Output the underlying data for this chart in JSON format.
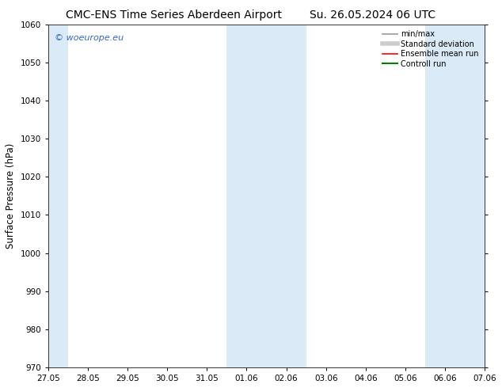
{
  "title_left": "CMC-ENS Time Series Aberdeen Airport",
  "title_right": "Su. 26.05.2024 06 UTC",
  "ylabel": "Surface Pressure (hPa)",
  "ylim": [
    970,
    1060
  ],
  "yticks": [
    970,
    980,
    990,
    1000,
    1010,
    1020,
    1030,
    1040,
    1050,
    1060
  ],
  "xtick_labels": [
    "27.05",
    "28.05",
    "29.05",
    "30.05",
    "31.05",
    "01.06",
    "02.06",
    "03.06",
    "04.06",
    "05.06",
    "06.06",
    "07.06"
  ],
  "shaded_columns": [
    0,
    5,
    6,
    10,
    11
  ],
  "shaded_color": "#daeaf7",
  "background_color": "#ffffff",
  "watermark": "© woeurope.eu",
  "watermark_color": "#3366cc",
  "legend_entries": [
    {
      "label": "min/max",
      "color": "#999999",
      "lw": 1.2
    },
    {
      "label": "Standard deviation",
      "color": "#cccccc",
      "lw": 4
    },
    {
      "label": "Ensemble mean run",
      "color": "#ff0000",
      "lw": 1.2
    },
    {
      "label": "Controll run",
      "color": "#008000",
      "lw": 1.5
    }
  ],
  "title_fontsize": 10,
  "tick_fontsize": 7.5,
  "axis_label_fontsize": 8.5,
  "watermark_fontsize": 8
}
